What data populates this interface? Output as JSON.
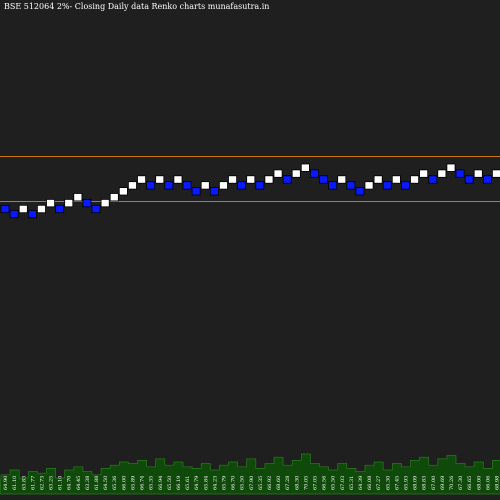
{
  "header": {
    "title": "BSE 512064  2%-  Closing Daily data  Renko  charts munafasutra.in"
  },
  "colors": {
    "background": "#1f1f1f",
    "up_brick": "#ffffff",
    "down_brick": "#0a1aff",
    "brick_outline": "#000000",
    "level_line": "#c8780a",
    "volume_fill": "#0f4a0a",
    "volume_outline": "#2a7a1e",
    "label_text": "#ffffff"
  },
  "chart_data": {
    "type": "renko",
    "title": "BSE 512064  2%-  Closing Daily data  Renko  charts munafasutra.in",
    "brick_size_label": "2%",
    "interval": "Daily",
    "grid": false,
    "reference_lines": [
      70.0,
      63.9
    ],
    "bricks": [
      {
        "dir": "down",
        "level": 62.8,
        "label": "64.90"
      },
      {
        "dir": "down",
        "level": 62.1,
        "label": "61.10"
      },
      {
        "dir": "up",
        "level": 62.8,
        "label": "63.83"
      },
      {
        "dir": "down",
        "level": 62.1,
        "label": "61.77"
      },
      {
        "dir": "up",
        "level": 62.8,
        "label": "62.73"
      },
      {
        "dir": "up",
        "level": 63.6,
        "label": "63.25"
      },
      {
        "dir": "down",
        "level": 62.8,
        "label": "61.10"
      },
      {
        "dir": "up",
        "level": 63.6,
        "label": "64.70"
      },
      {
        "dir": "up",
        "level": 64.4,
        "label": "64.45"
      },
      {
        "dir": "down",
        "level": 63.6,
        "label": "63.38"
      },
      {
        "dir": "down",
        "level": 62.8,
        "label": "61.88"
      },
      {
        "dir": "up",
        "level": 63.6,
        "label": "64.50"
      },
      {
        "dir": "up",
        "level": 64.4,
        "label": "65.36"
      },
      {
        "dir": "up",
        "level": 65.2,
        "label": "66.00"
      },
      {
        "dir": "up",
        "level": 66.0,
        "label": "65.89"
      },
      {
        "dir": "up",
        "level": 66.8,
        "label": "66.74"
      },
      {
        "dir": "down",
        "level": 66.0,
        "label": "65.35"
      },
      {
        "dir": "up",
        "level": 66.8,
        "label": "66.94"
      },
      {
        "dir": "down",
        "level": 66.0,
        "label": "65.50"
      },
      {
        "dir": "up",
        "level": 66.8,
        "label": "66.19"
      },
      {
        "dir": "down",
        "level": 66.0,
        "label": "65.61"
      },
      {
        "dir": "down",
        "level": 65.2,
        "label": "64.79"
      },
      {
        "dir": "up",
        "level": 66.0,
        "label": "65.84"
      },
      {
        "dir": "down",
        "level": 65.2,
        "label": "64.23"
      },
      {
        "dir": "up",
        "level": 66.0,
        "label": "65.79"
      },
      {
        "dir": "up",
        "level": 66.8,
        "label": "66.70"
      },
      {
        "dir": "down",
        "level": 66.0,
        "label": "65.50"
      },
      {
        "dir": "up",
        "level": 66.8,
        "label": "67.90"
      },
      {
        "dir": "down",
        "level": 66.0,
        "label": "65.35"
      },
      {
        "dir": "up",
        "level": 66.8,
        "label": "66.92"
      },
      {
        "dir": "up",
        "level": 67.6,
        "label": "68.60"
      },
      {
        "dir": "down",
        "level": 66.8,
        "label": "67.28"
      },
      {
        "dir": "up",
        "level": 67.6,
        "label": "68.30"
      },
      {
        "dir": "up",
        "level": 68.4,
        "label": "70.05"
      },
      {
        "dir": "down",
        "level": 67.6,
        "label": "67.05"
      },
      {
        "dir": "down",
        "level": 66.8,
        "label": "66.56"
      },
      {
        "dir": "down",
        "level": 66.0,
        "label": "65.50"
      },
      {
        "dir": "up",
        "level": 66.8,
        "label": "67.03"
      },
      {
        "dir": "down",
        "level": 66.0,
        "label": "65.31"
      },
      {
        "dir": "down",
        "level": 65.2,
        "label": "64.39"
      },
      {
        "dir": "up",
        "level": 66.0,
        "label": "66.08"
      },
      {
        "dir": "up",
        "level": 66.8,
        "label": "67.27"
      },
      {
        "dir": "down",
        "level": 66.0,
        "label": "65.30"
      },
      {
        "dir": "up",
        "level": 66.8,
        "label": "67.45"
      },
      {
        "dir": "down",
        "level": 66.0,
        "label": "65.93"
      },
      {
        "dir": "up",
        "level": 66.8,
        "label": "68.09"
      },
      {
        "dir": "up",
        "level": 67.6,
        "label": "68.83"
      },
      {
        "dir": "down",
        "level": 66.8,
        "label": "67.00"
      },
      {
        "dir": "up",
        "level": 67.6,
        "label": "69.69"
      },
      {
        "dir": "up",
        "level": 68.4,
        "label": "70.26"
      },
      {
        "dir": "down",
        "level": 67.6,
        "label": "67.30"
      },
      {
        "dir": "down",
        "level": 66.8,
        "label": "66.65"
      },
      {
        "dir": "up",
        "level": 67.6,
        "label": "68.00"
      },
      {
        "dir": "down",
        "level": 66.8,
        "label": "66.06"
      },
      {
        "dir": "up",
        "level": 67.6,
        "label": "68.98"
      }
    ],
    "volume": [
      12,
      15,
      10,
      14,
      13,
      16,
      10,
      15,
      17,
      14,
      12,
      16,
      18,
      20,
      19,
      21,
      17,
      22,
      18,
      20,
      17,
      16,
      19,
      15,
      18,
      20,
      17,
      22,
      16,
      19,
      23,
      18,
      21,
      25,
      19,
      17,
      15,
      19,
      16,
      14,
      18,
      20,
      15,
      19,
      17,
      21,
      23,
      18,
      22,
      24,
      19,
      17,
      20,
      16,
      21
    ]
  }
}
